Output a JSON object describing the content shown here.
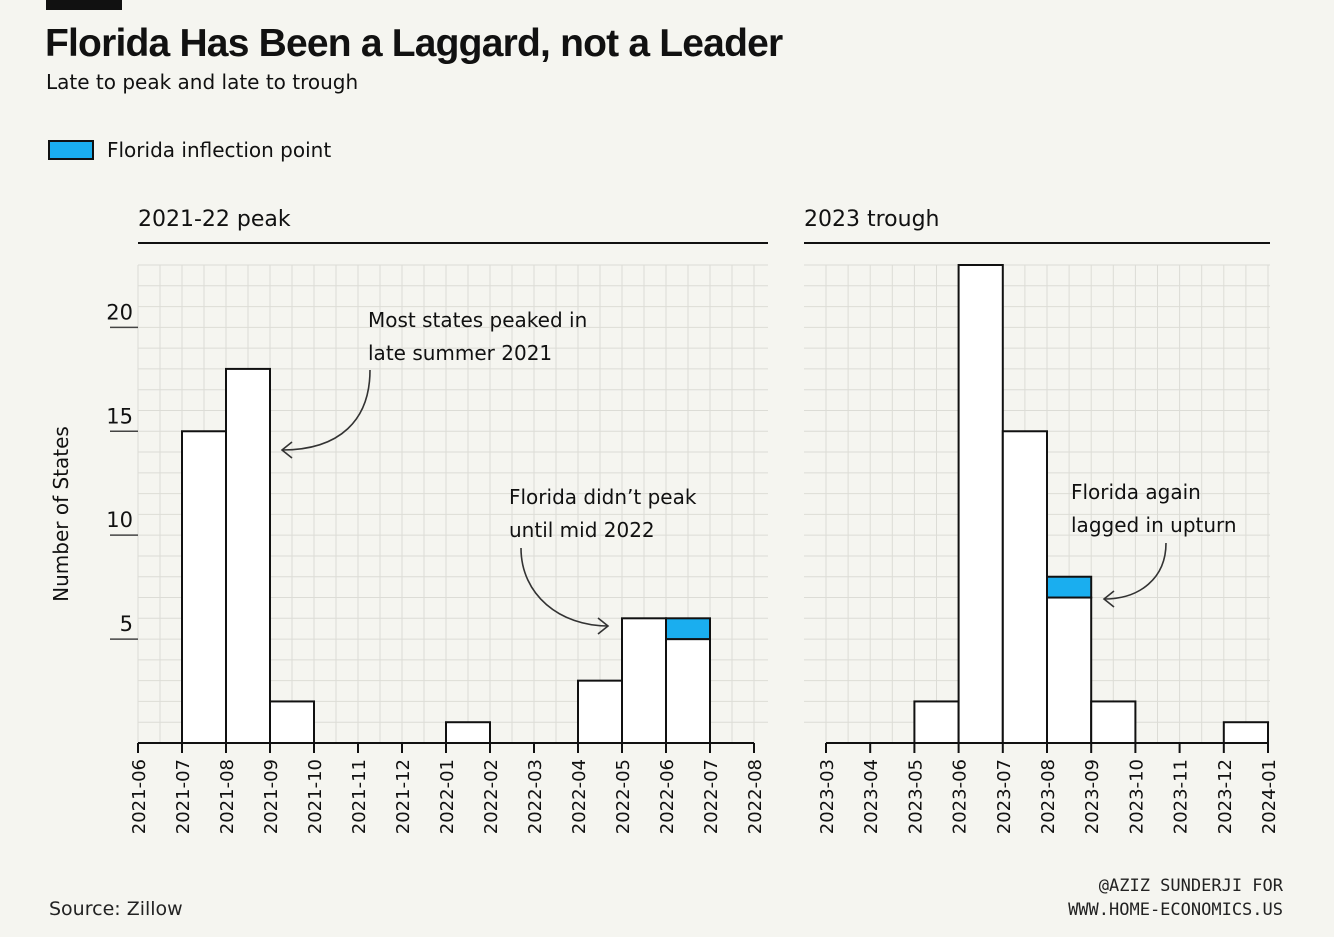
{
  "title": "Florida Has Been a Laggard, not a Leader",
  "subtitle": "Late to peak and late to trough",
  "legend": {
    "label": "Florida inflection point",
    "color": "#1aaeef"
  },
  "source": "Source: Zillow",
  "credit": {
    "line1": "@AZIZ SUNDERJI FOR",
    "line2": "WWW.HOME-ECONOMICS.US"
  },
  "colors": {
    "bar_fill": "#ffffff",
    "florida": "#1aaeef",
    "grid": "#dcdcd6",
    "ink": "#111111"
  },
  "chart_data": [
    {
      "type": "bar",
      "panel_title": "2021-22 peak",
      "ylabel": "Number of States",
      "ylim": [
        0,
        23
      ],
      "yticks": [
        5,
        10,
        15,
        20
      ],
      "x_ticks": [
        "2021-06",
        "2021-07",
        "2021-08",
        "2021-09",
        "2021-10",
        "2021-11",
        "2021-12",
        "2022-01",
        "2022-02",
        "2022-03",
        "2022-04",
        "2022-05",
        "2022-06",
        "2022-07",
        "2022-08"
      ],
      "bins": [
        {
          "start": "2021-07",
          "end": "2021-08",
          "value": 15,
          "florida": 0
        },
        {
          "start": "2021-08",
          "end": "2021-09",
          "value": 18,
          "florida": 0
        },
        {
          "start": "2021-09",
          "end": "2021-10",
          "value": 2,
          "florida": 0
        },
        {
          "start": "2022-01",
          "end": "2022-02",
          "value": 1,
          "florida": 0
        },
        {
          "start": "2022-04",
          "end": "2022-05",
          "value": 3,
          "florida": 0
        },
        {
          "start": "2022-05",
          "end": "2022-06",
          "value": 6,
          "florida": 0
        },
        {
          "start": "2022-06",
          "end": "2022-07",
          "value": 6,
          "florida": 1
        }
      ],
      "annotations": [
        {
          "lines": [
            "Most states peaked in",
            "late summer 2021"
          ]
        },
        {
          "lines": [
            "Florida didn’t peak",
            "until mid 2022"
          ]
        }
      ],
      "grid": true
    },
    {
      "type": "bar",
      "panel_title": "2023 trough",
      "ylim": [
        0,
        23
      ],
      "x_ticks": [
        "2023-03",
        "2023-04",
        "2023-05",
        "2023-06",
        "2023-07",
        "2023-08",
        "2023-09",
        "2023-10",
        "2023-11",
        "2023-12",
        "2024-01"
      ],
      "bins": [
        {
          "start": "2023-05",
          "end": "2023-06",
          "value": 2,
          "florida": 0
        },
        {
          "start": "2023-06",
          "end": "2023-07",
          "value": 23,
          "florida": 0
        },
        {
          "start": "2023-07",
          "end": "2023-08",
          "value": 15,
          "florida": 0
        },
        {
          "start": "2023-08",
          "end": "2023-09",
          "value": 8,
          "florida": 1
        },
        {
          "start": "2023-09",
          "end": "2023-10",
          "value": 2,
          "florida": 0
        },
        {
          "start": "2023-12",
          "end": "2024-01",
          "value": 1,
          "florida": 0
        }
      ],
      "annotations": [
        {
          "lines": [
            "Florida again",
            "lagged in upturn"
          ]
        }
      ],
      "grid": true
    }
  ]
}
